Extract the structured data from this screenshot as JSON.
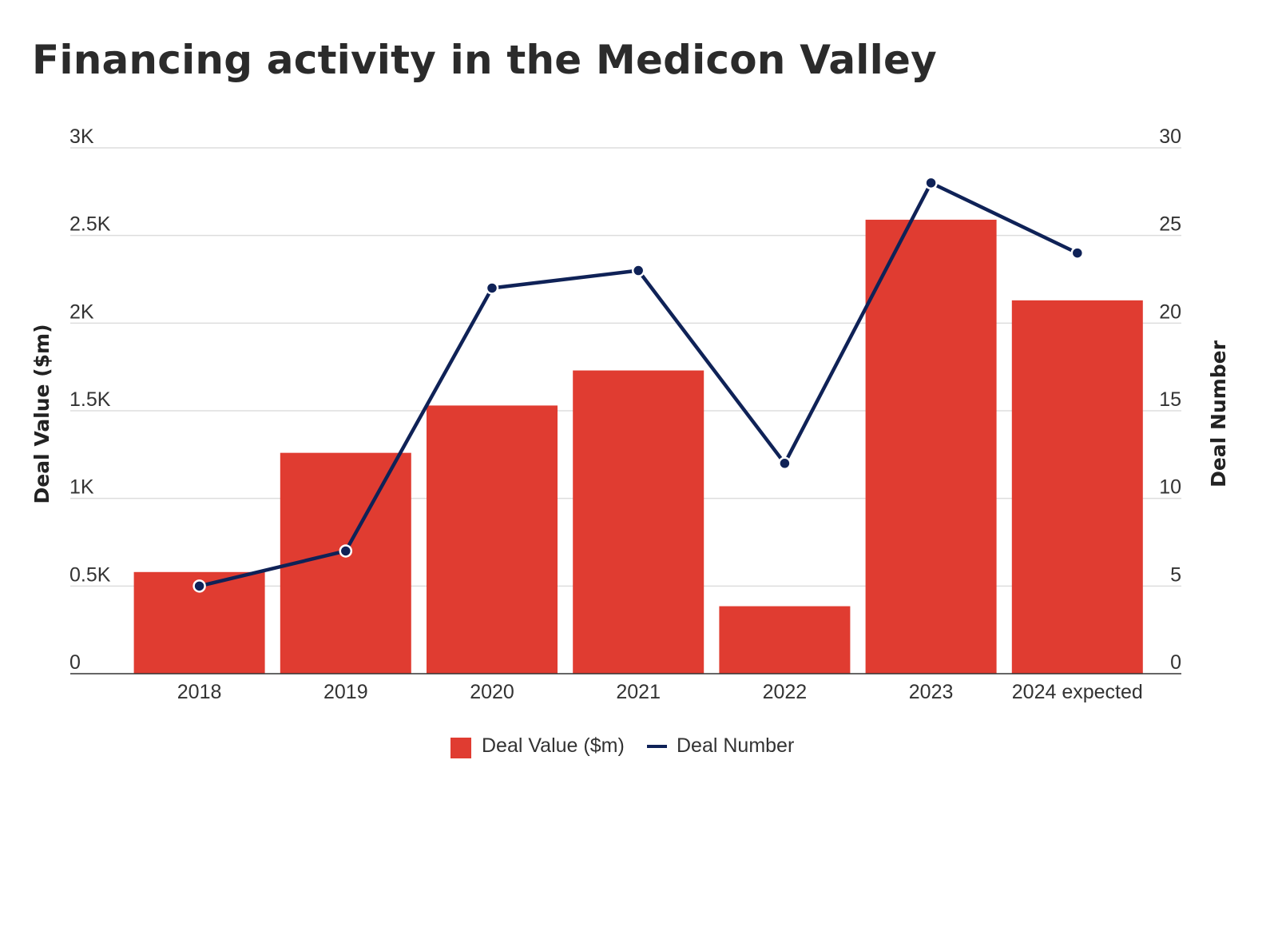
{
  "title": "Financing activity in the Medicon Valley",
  "colors": {
    "bar": "#e03c31",
    "line": "#0f2257",
    "grid": "#dddddd",
    "axis": "#333333"
  },
  "chart_data": {
    "type": "bar",
    "title": "Financing activity in the Medicon Valley",
    "categories": [
      "2018",
      "2019",
      "2020",
      "2021",
      "2022",
      "2023",
      "2024 expected"
    ],
    "series": [
      {
        "name": "Deal Value ($m)",
        "type": "bar",
        "axis": "left",
        "values": [
          580,
          1260,
          1530,
          1730,
          385,
          2590,
          2130
        ]
      },
      {
        "name": "Deal Number",
        "type": "line",
        "axis": "right",
        "values": [
          5,
          7,
          22,
          23,
          12,
          28,
          24
        ]
      }
    ],
    "ylabel": "Deal Value ($m)",
    "y2label": "Deal Number",
    "ylim": [
      0,
      3000
    ],
    "y2lim": [
      0,
      30
    ],
    "yticks": [
      "0",
      "0.5K",
      "1K",
      "1.5K",
      "2K",
      "2.5K",
      "3K"
    ],
    "y2ticks": [
      "0",
      "5",
      "10",
      "15",
      "20",
      "25",
      "30"
    ],
    "grid": true,
    "legend_position": "bottom-center"
  }
}
